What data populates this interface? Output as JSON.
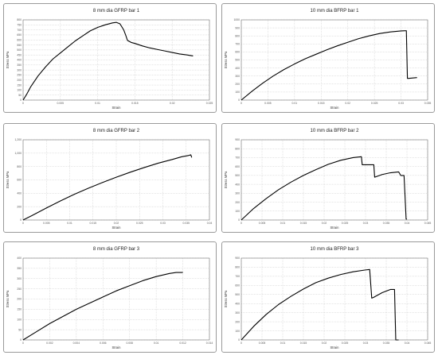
{
  "chart_data": [
    {
      "type": "line",
      "title": "8 mm dia GFRP bar 1",
      "xlabel": "Strain",
      "ylabel": "Stress MPa",
      "xlim": [
        0,
        0.025
      ],
      "ylim": [
        0,
        800
      ],
      "x_ticks": [
        "0",
        "0.005",
        "0.01",
        "0.015",
        "0.02",
        "0.025"
      ],
      "y_ticks": [
        "0",
        "50",
        "100",
        "150",
        "200",
        "250",
        "300",
        "350",
        "400",
        "450",
        "500",
        "550",
        "600",
        "650",
        "700",
        "750",
        "800"
      ],
      "grid": true,
      "series": [
        {
          "x": [
            0,
            0.0005,
            0.001,
            0.002,
            0.003,
            0.004,
            0.005,
            0.006,
            0.007,
            0.008,
            0.009,
            0.01,
            0.011,
            0.012,
            0.0125,
            0.013,
            0.0135,
            0.0138,
            0.014,
            0.0145,
            0.015,
            0.016,
            0.017,
            0.018,
            0.019,
            0.02,
            0.021,
            0.022,
            0.0228
          ],
          "y": [
            0,
            60,
            130,
            240,
            330,
            410,
            470,
            530,
            590,
            640,
            690,
            725,
            750,
            770,
            775,
            760,
            700,
            640,
            595,
            575,
            565,
            540,
            520,
            505,
            490,
            475,
            460,
            450,
            440
          ]
        }
      ]
    },
    {
      "type": "line",
      "title": "10 mm dia BFRP bar 1",
      "xlabel": "Strain",
      "ylabel": "Stress MPa",
      "xlim": [
        0,
        0.035
      ],
      "ylim": [
        0,
        1000
      ],
      "x_ticks": [
        "0",
        "0.005",
        "0.01",
        "0.015",
        "0.02",
        "0.025",
        "0.03",
        "0.035"
      ],
      "y_ticks": [
        "0",
        "100",
        "200",
        "300",
        "400",
        "500",
        "600",
        "700",
        "800",
        "900",
        "1000"
      ],
      "grid": true,
      "series": [
        {
          "x": [
            0,
            0.002,
            0.004,
            0.006,
            0.008,
            0.01,
            0.012,
            0.014,
            0.016,
            0.018,
            0.02,
            0.022,
            0.024,
            0.026,
            0.028,
            0.03,
            0.031,
            0.0312,
            0.0314,
            0.033
          ],
          "y": [
            0,
            110,
            210,
            300,
            380,
            450,
            515,
            570,
            625,
            675,
            720,
            765,
            800,
            830,
            850,
            862,
            865,
            270,
            270,
            280
          ]
        }
      ]
    },
    {
      "type": "line",
      "title": "8 mm dia GFRP bar 2",
      "xlabel": "Strain",
      "ylabel": "Stress MPa",
      "xlim": [
        0,
        0.04
      ],
      "ylim": [
        0,
        1200
      ],
      "x_ticks": [
        "0",
        "0.005",
        "0.01",
        "0.015",
        "0.02",
        "0.025",
        "0.03",
        "0.035",
        "0.04"
      ],
      "y_ticks": [
        "0",
        "200",
        "400",
        "600",
        "800",
        "1,000",
        "1,200"
      ],
      "grid": true,
      "series": [
        {
          "x": [
            0,
            0.002,
            0.005,
            0.008,
            0.011,
            0.014,
            0.017,
            0.02,
            0.023,
            0.026,
            0.029,
            0.032,
            0.034,
            0.0355,
            0.036,
            0.0362
          ],
          "y": [
            0,
            70,
            180,
            285,
            385,
            475,
            560,
            640,
            715,
            785,
            850,
            905,
            945,
            965,
            975,
            935
          ]
        }
      ]
    },
    {
      "type": "line",
      "title": "10 mm dia BFRP bar 2",
      "xlabel": "Strain",
      "ylabel": "Stress MPa",
      "xlim": [
        0,
        0.045
      ],
      "ylim": [
        0,
        900
      ],
      "x_ticks": [
        "0",
        "0.005",
        "0.01",
        "0.015",
        "0.02",
        "0.025",
        "0.03",
        "0.035",
        "0.04",
        "0.045"
      ],
      "y_ticks": [
        "0",
        "100",
        "200",
        "300",
        "400",
        "500",
        "600",
        "700",
        "800",
        "900"
      ],
      "grid": true,
      "series": [
        {
          "x": [
            0,
            0.003,
            0.006,
            0.009,
            0.012,
            0.015,
            0.018,
            0.021,
            0.024,
            0.027,
            0.029,
            0.0292,
            0.03,
            0.032,
            0.0322,
            0.034,
            0.036,
            0.038,
            0.0385,
            0.039,
            0.0393,
            0.0398,
            0.04
          ],
          "y": [
            0,
            130,
            240,
            340,
            425,
            500,
            565,
            625,
            670,
            700,
            710,
            620,
            620,
            620,
            480,
            510,
            530,
            540,
            500,
            500,
            500,
            10,
            10
          ]
        }
      ]
    },
    {
      "type": "line",
      "title": "8 mm dia GFRP bar 3",
      "xlabel": "Strain",
      "ylabel": "Stress MPa",
      "xlim": [
        0,
        0.014
      ],
      "ylim": [
        0,
        400
      ],
      "x_ticks": [
        "0",
        "0.002",
        "0.004",
        "0.006",
        "0.008",
        "0.01",
        "0.012",
        "0.014"
      ],
      "y_ticks": [
        "0",
        "50",
        "100",
        "150",
        "200",
        "250",
        "300",
        "350",
        "400"
      ],
      "grid": true,
      "series": [
        {
          "x": [
            0,
            0.001,
            0.002,
            0.003,
            0.004,
            0.005,
            0.006,
            0.007,
            0.008,
            0.009,
            0.01,
            0.011,
            0.0115,
            0.012
          ],
          "y": [
            0,
            40,
            80,
            115,
            150,
            180,
            210,
            240,
            265,
            290,
            310,
            325,
            330,
            330
          ]
        }
      ]
    },
    {
      "type": "line",
      "title": "10 mm dia BFRP bar 3",
      "xlabel": "Strain",
      "ylabel": "Stress MPa",
      "xlim": [
        0,
        0.045
      ],
      "ylim": [
        0,
        900
      ],
      "x_ticks": [
        "0",
        "0.005",
        "0.01",
        "0.015",
        "0.02",
        "0.025",
        "0.03",
        "0.035",
        "0.04",
        "0.045"
      ],
      "y_ticks": [
        "0",
        "100",
        "200",
        "300",
        "400",
        "500",
        "600",
        "700",
        "800",
        "900"
      ],
      "grid": true,
      "series": [
        {
          "x": [
            0,
            0.003,
            0.006,
            0.009,
            0.012,
            0.015,
            0.018,
            0.021,
            0.024,
            0.027,
            0.03,
            0.031,
            0.0315,
            0.032,
            0.034,
            0.036,
            0.037,
            0.0373,
            0.038
          ],
          "y": [
            0,
            150,
            280,
            390,
            480,
            560,
            630,
            680,
            720,
            750,
            770,
            775,
            460,
            470,
            520,
            555,
            555,
            0,
            0
          ]
        }
      ]
    }
  ]
}
